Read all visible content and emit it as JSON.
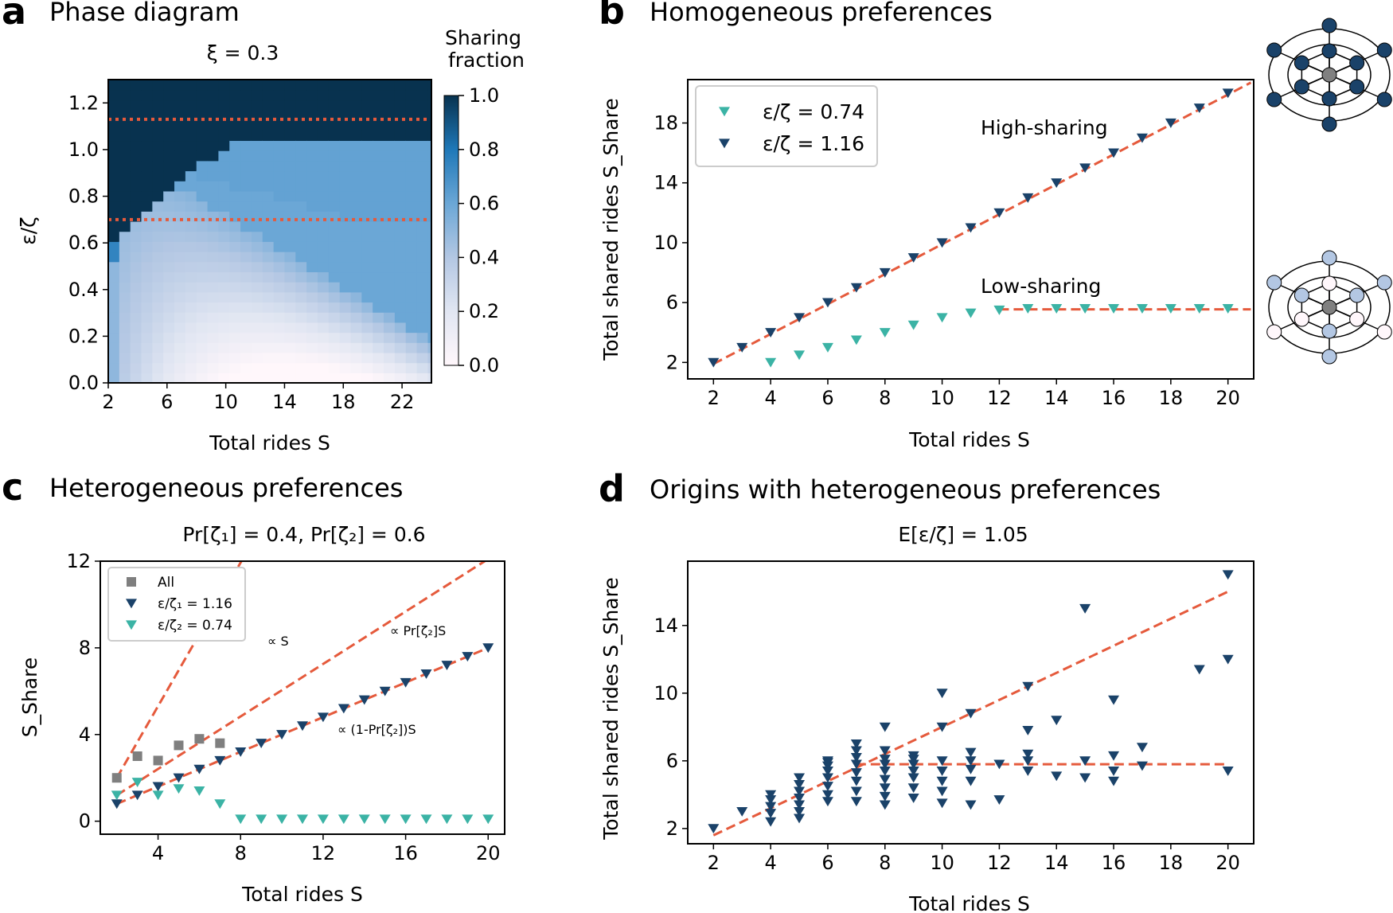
{
  "colors": {
    "dark": "#1a4269",
    "teal": "#3bb3a5",
    "grey": "#7f7f7f",
    "fit": "#e55a3c",
    "cmap_low": "#fff7fb",
    "cmap_mid": "#6ba7d6",
    "cmap_high": "#08324f"
  },
  "panels": {
    "a": {
      "label": "a",
      "title": "Phase diagram",
      "subtitle": "ξ = 0.3"
    },
    "b": {
      "label": "b",
      "title": "Homogeneous preferences"
    },
    "c": {
      "label": "c",
      "title": "Heterogeneous preferences",
      "subtitle": "Pr[ζ₁] = 0.4, Pr[ζ₂] = 0.6"
    },
    "d": {
      "label": "d",
      "title": "Origins with heterogeneous preferences",
      "subtitle": "E[ε/ζ] = 1.05"
    }
  },
  "network_icons": [
    {
      "name": "high-sharing-network",
      "icon": "hexagonal-network-dark"
    },
    {
      "name": "low-sharing-network",
      "icon": "hexagonal-network-light"
    }
  ],
  "chart_data": [
    {
      "panel": "a",
      "type": "heatmap",
      "xlabel": "Total rides S",
      "ylabel": "ε/ζ",
      "xlim": [
        2,
        24
      ],
      "ylim": [
        0,
        1.3
      ],
      "xticks": [
        2,
        6,
        10,
        14,
        18,
        22
      ],
      "yticks": [
        0.0,
        0.2,
        0.4,
        0.6,
        0.8,
        1.0,
        1.2
      ],
      "colorbar": {
        "label": "Sharing fraction",
        "ticks": [
          0.0,
          0.2,
          0.4,
          0.6,
          0.8,
          1.0
        ]
      },
      "reference_lines_y": [
        1.13,
        0.7
      ]
    },
    {
      "panel": "b",
      "type": "scatter",
      "xlabel": "Total rides S",
      "ylabel": "Total shared rides S_Share",
      "xlim": [
        1.1,
        20.9
      ],
      "ylim": [
        0.9,
        20.9
      ],
      "xticks": [
        2,
        4,
        6,
        8,
        10,
        12,
        14,
        16,
        18,
        20
      ],
      "yticks": [
        2,
        6,
        10,
        14,
        18
      ],
      "legend_position": "upper-left",
      "annotations": [
        "High-sharing",
        "Low-sharing"
      ],
      "series": [
        {
          "name": "ε/ζ = 0.74",
          "color": "teal",
          "x": [
            4,
            5,
            6,
            7,
            8,
            9,
            10,
            11,
            12,
            13,
            14,
            15,
            16,
            17,
            18,
            19,
            20
          ],
          "y": [
            2.0,
            2.5,
            3.0,
            3.5,
            4.0,
            4.5,
            5.0,
            5.3,
            5.5,
            5.6,
            5.6,
            5.6,
            5.6,
            5.6,
            5.6,
            5.6,
            5.6
          ]
        },
        {
          "name": "ε/ζ = 1.16",
          "color": "dark",
          "x": [
            2,
            3,
            4,
            5,
            6,
            7,
            8,
            9,
            10,
            11,
            12,
            13,
            14,
            15,
            16,
            17,
            18,
            19,
            20
          ],
          "y": [
            2,
            3,
            4,
            5,
            6,
            7,
            8,
            9,
            10,
            11,
            12,
            13,
            14,
            15,
            16,
            17,
            18,
            19,
            20
          ]
        }
      ],
      "fit_lines": [
        {
          "x": [
            2,
            20.8
          ],
          "y": [
            1.9,
            20.7
          ]
        },
        {
          "x": [
            12,
            20.8
          ],
          "y": [
            5.55,
            5.55
          ]
        }
      ]
    },
    {
      "panel": "c",
      "type": "scatter",
      "xlabel": "Total rides S",
      "ylabel": "S_Share",
      "xlim": [
        1.2,
        20.8
      ],
      "ylim": [
        -0.6,
        12
      ],
      "xticks": [
        4,
        8,
        12,
        16,
        20
      ],
      "yticks": [
        0,
        4,
        8,
        12
      ],
      "legend_position": "upper-left",
      "annotations": [
        "∝ S",
        "∝ Pr[ζ₂]S",
        "∝ (1-Pr[ζ₂])S"
      ],
      "series": [
        {
          "name": "All",
          "color": "grey",
          "x": [
            2,
            3,
            4,
            5,
            6,
            7
          ],
          "y": [
            2.0,
            3.0,
            2.8,
            3.5,
            3.8,
            3.6
          ]
        },
        {
          "name": "ε/ζ₁ = 1.16",
          "color": "dark",
          "x": [
            2,
            3,
            4,
            5,
            6,
            7,
            8,
            9,
            10,
            11,
            12,
            13,
            14,
            15,
            16,
            17,
            18,
            19,
            20
          ],
          "y": [
            0.8,
            1.2,
            1.6,
            2.0,
            2.4,
            2.8,
            3.2,
            3.6,
            4.0,
            4.4,
            4.8,
            5.2,
            5.6,
            6.0,
            6.4,
            6.8,
            7.2,
            7.6,
            8.0
          ]
        },
        {
          "name": "ε/ζ₂ = 0.74",
          "color": "teal",
          "x": [
            2,
            3,
            4,
            5,
            6,
            7,
            8,
            9,
            10,
            11,
            12,
            13,
            14,
            15,
            16,
            17,
            18,
            19,
            20
          ],
          "y": [
            1.2,
            1.8,
            1.2,
            1.5,
            1.4,
            0.8,
            0.1,
            0.1,
            0.1,
            0.1,
            0.1,
            0.1,
            0.1,
            0.1,
            0.1,
            0.1,
            0.1,
            0.1,
            0.1
          ]
        }
      ],
      "fit_lines": [
        {
          "x": [
            2,
            8.1
          ],
          "y": [
            2,
            12.1
          ]
        },
        {
          "x": [
            2,
            20
          ],
          "y": [
            1.2,
            12.1
          ]
        },
        {
          "x": [
            2,
            20
          ],
          "y": [
            0.8,
            8.0
          ]
        }
      ]
    },
    {
      "panel": "d",
      "type": "scatter",
      "xlabel": "Total rides S",
      "ylabel": "Total shared rides S_Share",
      "xlim": [
        1.1,
        20.9
      ],
      "ylim": [
        1.1,
        17.8
      ],
      "xticks": [
        2,
        4,
        6,
        8,
        10,
        12,
        14,
        16,
        18,
        20
      ],
      "yticks": [
        2,
        6,
        10,
        14
      ],
      "series": [
        {
          "name": "origins",
          "color": "dark",
          "x": [
            2,
            3,
            4,
            4,
            4,
            4,
            4,
            5,
            5,
            5,
            5,
            5,
            5,
            5,
            6,
            6,
            6,
            6,
            6,
            6,
            6,
            6,
            7,
            7,
            7,
            7,
            7,
            7,
            7,
            7,
            8,
            8,
            8,
            8,
            8,
            8,
            8,
            8,
            8,
            9,
            9,
            9,
            9,
            9,
            9,
            9,
            10,
            10,
            10,
            10,
            10,
            10,
            10,
            11,
            11,
            11,
            11,
            11,
            11,
            12,
            12,
            13,
            13,
            13,
            13,
            13,
            14,
            14,
            15,
            15,
            15,
            16,
            16,
            16,
            16,
            17,
            17,
            19,
            20,
            20,
            20
          ],
          "y": [
            2.0,
            3.0,
            2.4,
            2.9,
            3.3,
            3.7,
            4.0,
            2.6,
            3.0,
            3.4,
            3.8,
            4.2,
            4.6,
            5.0,
            3.6,
            4.0,
            4.5,
            5.0,
            5.4,
            5.7,
            5.9,
            6.0,
            3.6,
            4.2,
            4.8,
            5.3,
            5.8,
            6.2,
            6.6,
            7.0,
            3.4,
            3.9,
            4.4,
            4.9,
            5.4,
            5.8,
            6.1,
            6.6,
            8.0,
            3.8,
            4.4,
            5.0,
            5.4,
            5.8,
            6.1,
            6.3,
            3.5,
            4.2,
            4.8,
            5.4,
            6.0,
            8.0,
            10.0,
            3.4,
            4.8,
            5.5,
            6.0,
            6.5,
            8.8,
            3.7,
            5.8,
            5.4,
            6.0,
            6.4,
            7.8,
            10.4,
            5.1,
            8.4,
            5.0,
            6.0,
            15.0,
            4.8,
            5.4,
            6.3,
            9.6,
            5.7,
            6.8,
            11.4,
            5.4,
            12.0,
            17.0
          ]
        }
      ],
      "fit_lines": [
        {
          "x": [
            2,
            20
          ],
          "y": [
            1.6,
            16.0
          ]
        },
        {
          "x": [
            7,
            20
          ],
          "y": [
            5.8,
            5.8
          ]
        }
      ]
    }
  ]
}
